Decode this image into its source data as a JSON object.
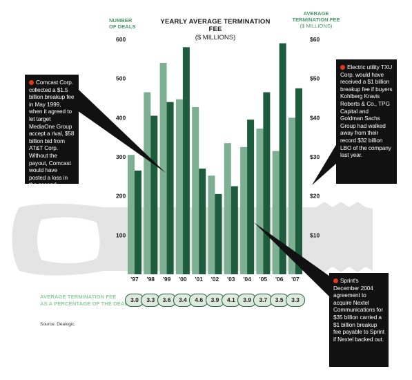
{
  "title": "YEARLY AVERAGE TERMINATION FEE",
  "subtitle": "($ MILLIONS)",
  "left_axis_title": [
    "NUMBER",
    "OF DEALS"
  ],
  "right_axis_title": [
    "AVERAGE",
    "TERMINATION FEE",
    "($ MILLIONS)"
  ],
  "left_ticks": [
    "600",
    "500",
    "400",
    "300",
    "200",
    "100"
  ],
  "right_ticks": [
    "$60",
    "$50",
    "$40",
    "$30",
    "$20",
    "$10"
  ],
  "pct_label": [
    "AVERAGE TERMINATION FEE",
    "AS A PERCENTAGE OF THE DEAL"
  ],
  "source": "Source: Dealogic.",
  "callouts": {
    "comcast": "Comcast Corp. collected a $1.5 billion breakup fee in May 1999, when it agreed to let target MediaOne Group accept a rival, $58 billion bid from AT&T Corp. Without the payout, Comcast would have posted a loss in the second quarter of that year.",
    "txu": "Electric utility TXU Corp. would have received a $1 billion breakup fee if buyers Kohlberg Kravis Roberts & Co., TPG Capital and Goldman Sachs Group had walked away from their record $32 billion LBO of the company last year.",
    "sprint": "Sprint's December 2004 agreement to acquire Nextel Communications for $35 billion carried a $1 billion breakup fee payable to Sprint if Nextel backed out."
  },
  "colors": {
    "deals_bar": "#7daf92",
    "fee_bar": "#1d5c3d",
    "axis_title": "#4a9a6a",
    "callout_dot": "#e03a1e"
  },
  "chart_data": {
    "type": "bar",
    "title": "YEARLY AVERAGE TERMINATION FEE",
    "subtitle": "($ MILLIONS)",
    "categories": [
      "'97",
      "'98",
      "'99",
      "'00",
      "'01",
      "'02",
      "'03",
      "'04",
      "'05",
      "'06",
      "'07"
    ],
    "series": [
      {
        "axis": "left",
        "values": [
          305,
          465,
          540,
          447,
          427,
          252,
          335,
          325,
          372,
          315,
          400
        ]
      },
      {
        "axis": "right",
        "values": [
          26.5,
          40.5,
          44,
          58,
          27,
          20.5,
          22.5,
          39.5,
          46.5,
          59,
          47.5
        ]
      }
    ],
    "pct_of_deal": [
      "3.0",
      "3.3",
      "3.6",
      "3.4",
      "4.6",
      "3.9",
      "4.1",
      "3.9",
      "3.7",
      "3.5",
      "3.3"
    ],
    "ylim_left": [
      0,
      600
    ],
    "ylim_right": [
      0,
      60
    ],
    "yticks_left": [
      100,
      200,
      300,
      400,
      500,
      600
    ],
    "yticks_right": [
      10,
      20,
      30,
      40,
      50,
      60
    ],
    "grid": false
  }
}
